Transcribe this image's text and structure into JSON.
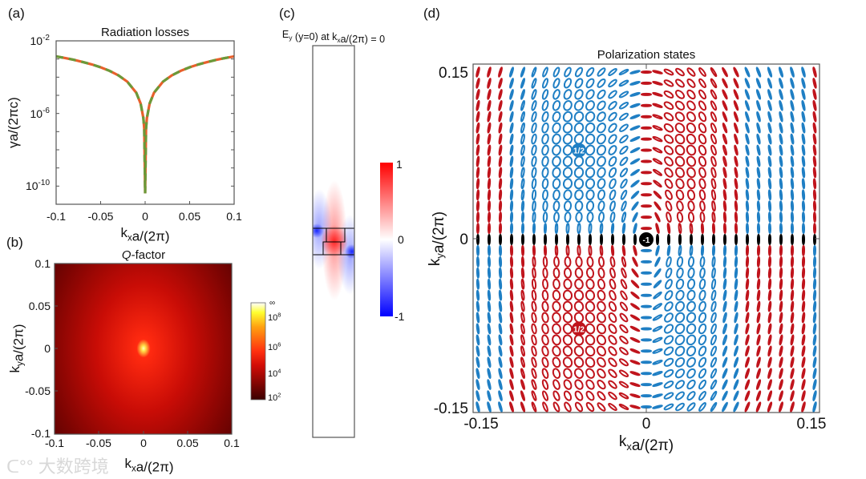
{
  "panel_labels": [
    "(a)",
    "(b)",
    "(c)",
    "(d)"
  ],
  "watermark": "大数跨境",
  "colors": {
    "orange": "#e8602c",
    "green": "#6a9a3a",
    "blue": "#1f7fc4",
    "red": "#c0141c",
    "black": "#000000"
  },
  "chart_data": [
    {
      "id": "a",
      "type": "line",
      "title": "Radiation losses",
      "xlabel": "k_x a/(2π)",
      "ylabel": "γa/(2πc)",
      "xlim": [
        -0.1,
        0.1
      ],
      "ylim": [
        1e-11,
        0.01
      ],
      "yscale": "log",
      "xticks": [
        "-0.1",
        "-0.05",
        "0",
        "0.05",
        "0.1"
      ],
      "yticks": [
        "10-2",
        "10-6",
        "10-10"
      ],
      "x": [
        -0.1,
        -0.09,
        -0.08,
        -0.07,
        -0.06,
        -0.05,
        -0.04,
        -0.03,
        -0.02,
        -0.01,
        -0.005,
        -0.002,
        -0.001,
        0,
        0.001,
        0.002,
        0.005,
        0.01,
        0.02,
        0.03,
        0.04,
        0.05,
        0.06,
        0.07,
        0.08,
        0.09,
        0.1
      ],
      "series": [
        {
          "style": "solid",
          "color": "#e8602c",
          "values": [
            0.0014,
            0.001134,
            0.000896,
            0.000686,
            0.000504,
            0.00035,
            0.000224,
            0.000126,
            5.6e-05,
            1.4e-05,
            3.5e-06,
            5.6e-07,
            1.4e-07,
            4e-11,
            1.4e-07,
            5.6e-07,
            3.5e-06,
            1.4e-05,
            5.6e-05,
            0.000126,
            0.000224,
            0.00035,
            0.000504,
            0.000686,
            0.000896,
            0.001134,
            0.0014
          ]
        },
        {
          "style": "dashed",
          "color": "#6a9a3a",
          "values": [
            0.0014,
            0.001134,
            0.000896,
            0.000686,
            0.000504,
            0.00035,
            0.000224,
            0.000126,
            5.6e-05,
            1.4e-05,
            3.5e-06,
            5.6e-07,
            1.4e-07,
            4e-11,
            1.4e-07,
            5.6e-07,
            3.5e-06,
            1.4e-05,
            5.6e-05,
            0.000126,
            0.000224,
            0.00035,
            0.000504,
            0.000686,
            0.000896,
            0.001134,
            0.0014
          ]
        }
      ]
    },
    {
      "id": "b",
      "type": "heatmap",
      "title": "Q-factor",
      "xlabel": "k_x a/(2π)",
      "ylabel": "k_y a/(2π)",
      "xlim": [
        -0.1,
        0.1
      ],
      "ylim": [
        -0.1,
        0.1
      ],
      "xticks": [
        "-0.1",
        "-0.05",
        "0",
        "0.05",
        "0.1"
      ],
      "yticks": [
        "0.1",
        "0.05",
        "0",
        "-0.05",
        "-0.1"
      ],
      "colorbar_ticks": [
        "∞",
        "10^8",
        "10^6",
        "10^4",
        "10^2"
      ],
      "colorbar_range": [
        100,
        "∞"
      ],
      "maximum_at": [
        0,
        0
      ]
    },
    {
      "id": "c",
      "type": "heatmap",
      "title": "E_y (y=0) at k_x a/(2π) = 0",
      "colorbar_ticks": [
        "1",
        "0",
        "-1"
      ],
      "colorbar_range": [
        -1,
        1
      ]
    },
    {
      "id": "d",
      "type": "scatter",
      "title": "Polarization states",
      "xlabel": "k_x a/(2π)",
      "ylabel": "k_y a/(2π)",
      "xlim": [
        -0.15,
        0.15
      ],
      "ylim": [
        -0.15,
        0.15
      ],
      "xticks": [
        "-0.15",
        "0",
        "0.15"
      ],
      "yticks": [
        "0.15",
        "0",
        "-0.15"
      ],
      "grid_step": 0.01,
      "singularities": [
        {
          "label": "1/2",
          "kx": -0.06,
          "ky": 0.08,
          "color": "#1f7fc4"
        },
        {
          "label": "1/2",
          "kx": -0.06,
          "ky": -0.08,
          "color": "#c0141c"
        },
        {
          "label": "-1",
          "kx": 0,
          "ky": 0,
          "color": "#000000"
        }
      ]
    }
  ]
}
